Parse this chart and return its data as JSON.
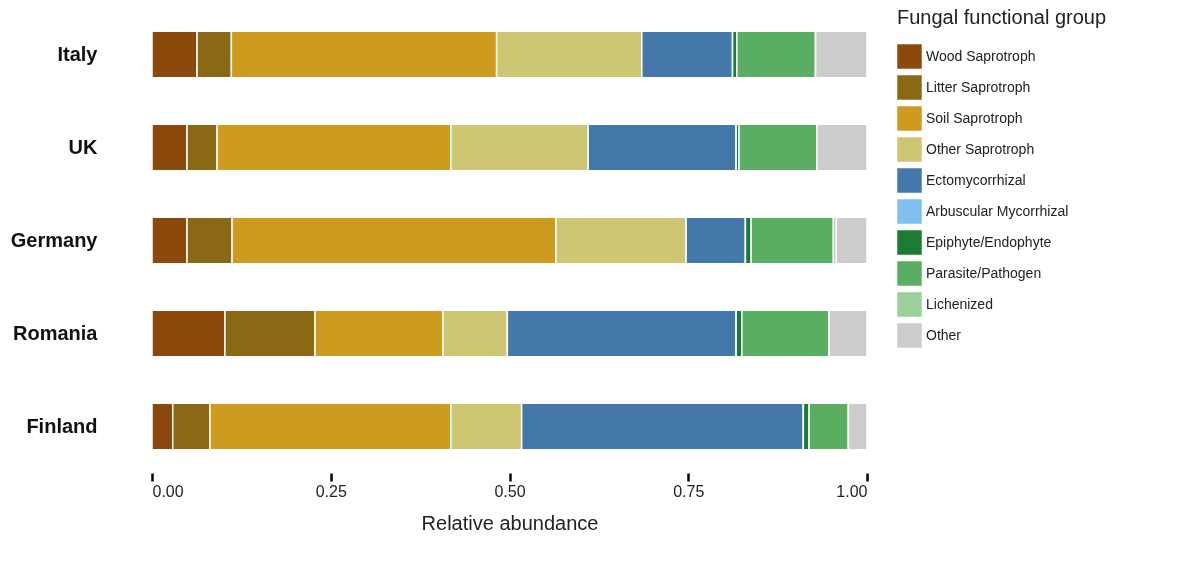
{
  "chart_data": {
    "type": "bar",
    "orientation": "horizontal",
    "stacked": true,
    "xlabel": "Relative abundance",
    "legend_title": "Fungal functional group",
    "legend": "right",
    "grid": false,
    "categories": [
      "Italy",
      "UK",
      "Germany",
      "Romania",
      "Finland"
    ],
    "xlim": [
      0,
      1
    ],
    "xticks": [
      {
        "value": 0,
        "label": "0.00"
      },
      {
        "value": 0.25,
        "label": "0.25"
      },
      {
        "value": 0.5,
        "label": "0.50"
      },
      {
        "value": 0.75,
        "label": "0.75"
      },
      {
        "value": 1,
        "label": "1.00"
      }
    ],
    "series": [
      {
        "name": "Wood Saprotroph",
        "color": "#8b4a0b",
        "values": [
          0.063,
          0.049,
          0.049,
          0.102,
          0.029
        ]
      },
      {
        "name": "Litter Saprotroph",
        "color": "#8b6914",
        "values": [
          0.048,
          0.042,
          0.063,
          0.126,
          0.052
        ]
      },
      {
        "name": "Soil Saprotroph",
        "color": "#cd9b1d",
        "values": [
          0.371,
          0.327,
          0.453,
          0.179,
          0.337
        ]
      },
      {
        "name": "Other Saprotroph",
        "color": "#cdc673",
        "values": [
          0.203,
          0.192,
          0.182,
          0.09,
          0.099
        ]
      },
      {
        "name": "Ectomycorrhizal",
        "color": "#4477aa",
        "values": [
          0.127,
          0.207,
          0.083,
          0.32,
          0.394
        ]
      },
      {
        "name": "Arbuscular Mycorrhizal",
        "color": "#7ec0ee",
        "values": [
          0,
          0,
          0,
          0,
          0
        ]
      },
      {
        "name": "Epiphyte/Endophyte",
        "color": "#1e7b34",
        "values": [
          0.006,
          0.004,
          0.008,
          0.008,
          0.008
        ]
      },
      {
        "name": "Parasite/Pathogen",
        "color": "#5aae61",
        "values": [
          0.11,
          0.109,
          0.115,
          0.122,
          0.055
        ]
      },
      {
        "name": "Lichenized",
        "color": "#9bd09b",
        "values": [
          0,
          0,
          0.004,
          0,
          0
        ]
      },
      {
        "name": "Other",
        "color": "#cccccc",
        "values": [
          0.072,
          0.07,
          0.043,
          0.053,
          0.026
        ]
      }
    ]
  }
}
